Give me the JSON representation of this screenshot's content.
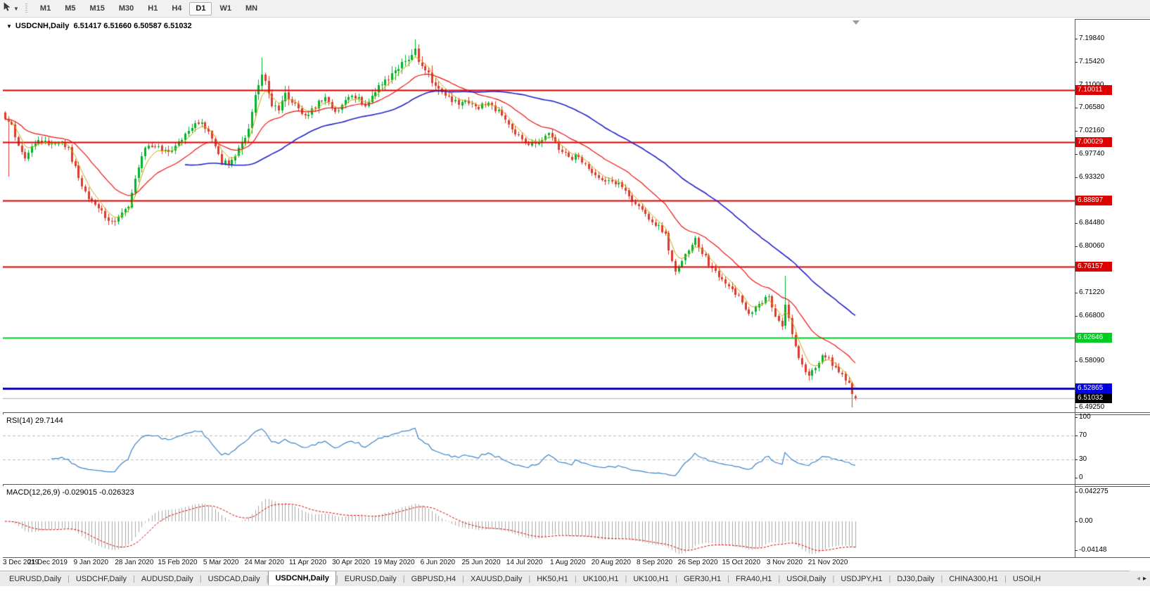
{
  "toolbar": {
    "timeframes": [
      "M1",
      "M5",
      "M15",
      "M30",
      "H1",
      "H4",
      "D1",
      "W1",
      "MN"
    ],
    "active_timeframe": "D1"
  },
  "chart": {
    "title": "USDCNH,Daily",
    "ohlc_text": "6.51417 6.51660 6.50587 6.51032"
  },
  "price_axis": {
    "ticks": [
      "7.19840",
      "7.15420",
      "7.11000",
      "7.06580",
      "7.02160",
      "6.97740",
      "6.93320",
      "6.84480",
      "6.80060",
      "6.71220",
      "6.66800",
      "6.58090",
      "6.49250"
    ]
  },
  "rsi": {
    "label": "RSI(14) 29.7144",
    "ticks": [
      "100",
      "70",
      "30",
      "0"
    ]
  },
  "macd": {
    "label": "MACD(12,26,9) -0.029015 -0.026323",
    "ticks": [
      {
        "text": "0.042275",
        "value": 0.042275
      },
      {
        "text": "0.00",
        "value": 0
      },
      {
        "text": "-0.04148",
        "value": -0.04148
      }
    ]
  },
  "date_axis": {
    "labels": [
      "3 Dec 2019",
      "21 Dec 2019",
      "9 Jan 2020",
      "28 Jan 2020",
      "15 Feb 2020",
      "5 Mar 2020",
      "24 Mar 2020",
      "11 Apr 2020",
      "30 Apr 2020",
      "19 May 2020",
      "6 Jun 2020",
      "25 Jun 2020",
      "14 Jul 2020",
      "1 Aug 2020",
      "20 Aug 2020",
      "8 Sep 2020",
      "26 Sep 2020",
      "15 Oct 2020",
      "3 Nov 2020",
      "21 Nov 2020"
    ],
    "label_day_step": 13
  },
  "tabs": {
    "items": [
      "EURUSD,Daily",
      "USDCHF,Daily",
      "AUDUSD,Daily",
      "USDCAD,Daily",
      "USDCNH,Daily",
      "EURUSD,Daily",
      "GBPUSD,H4",
      "XAUUSD,Daily",
      "HK50,H1",
      "UK100,H1",
      "UK100,H1",
      "GER30,H1",
      "FRA40,H1",
      "USOil,Daily",
      "USDJPY,H1",
      "DJ30,Daily",
      "CHINA300,H1",
      "USOil,H"
    ],
    "active_index": 4,
    "scroll_left": "◂",
    "scroll_right": "▸"
  },
  "chart_data": {
    "type": "candlestick",
    "title": "USDCNH Daily",
    "n_days": 256,
    "y_axis": {
      "top_price": 7.2361,
      "bottom_price": 6.4831
    },
    "x_axis": {
      "first_label": "3 Dec 2019",
      "last_label": "21 Nov 2020"
    },
    "price_anchors": [
      [
        0,
        7.045
      ],
      [
        2,
        7.032
      ],
      [
        4,
        6.998
      ],
      [
        6,
        6.972
      ],
      [
        8,
        6.992
      ],
      [
        10,
        7.006
      ],
      [
        13,
        6.996
      ],
      [
        16,
        7.002
      ],
      [
        19,
        6.986
      ],
      [
        22,
        6.932
      ],
      [
        25,
        6.895
      ],
      [
        28,
        6.876
      ],
      [
        31,
        6.852
      ],
      [
        33,
        6.846
      ],
      [
        35,
        6.862
      ],
      [
        37,
        6.878
      ],
      [
        39,
        6.934
      ],
      [
        41,
        6.976
      ],
      [
        43,
        6.994
      ],
      [
        45,
        6.992
      ],
      [
        47,
        6.986
      ],
      [
        49,
        6.978
      ],
      [
        51,
        6.992
      ],
      [
        53,
        7.004
      ],
      [
        55,
        7.022
      ],
      [
        57,
        7.042
      ],
      [
        59,
        7.034
      ],
      [
        61,
        7.018
      ],
      [
        63,
        6.992
      ],
      [
        65,
        6.958
      ],
      [
        67,
        6.962
      ],
      [
        69,
        6.976
      ],
      [
        71,
        6.998
      ],
      [
        73,
        7.03
      ],
      [
        75,
        7.088
      ],
      [
        77,
        7.13
      ],
      [
        78,
        7.115
      ],
      [
        80,
        7.072
      ],
      [
        82,
        7.062
      ],
      [
        84,
        7.092
      ],
      [
        86,
        7.078
      ],
      [
        88,
        7.062
      ],
      [
        90,
        7.052
      ],
      [
        92,
        7.062
      ],
      [
        94,
        7.076
      ],
      [
        96,
        7.086
      ],
      [
        98,
        7.068
      ],
      [
        100,
        7.058
      ],
      [
        102,
        7.078
      ],
      [
        104,
        7.088
      ],
      [
        106,
        7.082
      ],
      [
        108,
        7.068
      ],
      [
        110,
        7.092
      ],
      [
        112,
        7.108
      ],
      [
        114,
        7.118
      ],
      [
        116,
        7.128
      ],
      [
        118,
        7.142
      ],
      [
        120,
        7.156
      ],
      [
        122,
        7.168
      ],
      [
        123,
        7.178
      ],
      [
        124,
        7.152
      ],
      [
        126,
        7.142
      ],
      [
        128,
        7.118
      ],
      [
        130,
        7.098
      ],
      [
        132,
        7.088
      ],
      [
        134,
        7.082
      ],
      [
        136,
        7.072
      ],
      [
        139,
        7.076
      ],
      [
        142,
        7.068
      ],
      [
        145,
        7.072
      ],
      [
        148,
        7.058
      ],
      [
        151,
        7.032
      ],
      [
        154,
        7.012
      ],
      [
        157,
        6.996
      ],
      [
        160,
        7.002
      ],
      [
        163,
        7.016
      ],
      [
        166,
        6.988
      ],
      [
        169,
        6.968
      ],
      [
        172,
        6.974
      ],
      [
        175,
        6.948
      ],
      [
        178,
        6.936
      ],
      [
        181,
        6.926
      ],
      [
        184,
        6.918
      ],
      [
        187,
        6.898
      ],
      [
        190,
        6.874
      ],
      [
        193,
        6.852
      ],
      [
        196,
        6.84
      ],
      [
        198,
        6.822
      ],
      [
        200,
        6.772
      ],
      [
        201,
        6.756
      ],
      [
        203,
        6.77
      ],
      [
        205,
        6.792
      ],
      [
        207,
        6.814
      ],
      [
        209,
        6.792
      ],
      [
        211,
        6.768
      ],
      [
        213,
        6.752
      ],
      [
        215,
        6.736
      ],
      [
        217,
        6.722
      ],
      [
        219,
        6.712
      ],
      [
        221,
        6.694
      ],
      [
        223,
        6.672
      ],
      [
        225,
        6.682
      ],
      [
        227,
        6.696
      ],
      [
        229,
        6.704
      ],
      [
        231,
        6.668
      ],
      [
        233,
        6.648
      ],
      [
        234,
        6.692
      ],
      [
        235,
        6.66
      ],
      [
        236,
        6.628
      ],
      [
        237,
        6.606
      ],
      [
        239,
        6.578
      ],
      [
        241,
        6.552
      ],
      [
        243,
        6.572
      ],
      [
        245,
        6.592
      ],
      [
        247,
        6.584
      ],
      [
        249,
        6.568
      ],
      [
        251,
        6.552
      ],
      [
        253,
        6.536
      ],
      [
        254,
        6.516
      ],
      [
        255,
        6.51
      ]
    ],
    "spike_highs": [
      [
        77,
        7.162
      ],
      [
        123,
        7.1975
      ],
      [
        234,
        6.744
      ]
    ],
    "spike_lows": [
      [
        1,
        6.935
      ],
      [
        33,
        6.8405
      ],
      [
        201,
        6.7455
      ],
      [
        241,
        6.5435
      ],
      [
        254,
        6.4925
      ]
    ],
    "last_candle": {
      "open": 6.51417,
      "high": 6.5166,
      "low": 6.50587,
      "close": 6.51032
    },
    "levels": [
      {
        "label": "7.10011",
        "value": 7.10011,
        "color": "#dd0000",
        "width": 2
      },
      {
        "label": "7.00029",
        "value": 7.00029,
        "color": "#dd0000",
        "width": 2
      },
      {
        "label": "6.88897",
        "value": 6.88897,
        "color": "#dd0000",
        "width": 2
      },
      {
        "label": "6.76157",
        "value": 6.76157,
        "color": "#dd0000",
        "width": 2
      },
      {
        "label": "6.62646",
        "value": 6.62646,
        "color": "#00cc22",
        "width": 2
      },
      {
        "label": "6.52865",
        "value": 6.52865,
        "color": "#0000dd",
        "width": 3
      },
      {
        "label": "6.51032",
        "value": 6.51032,
        "color": "#000000",
        "width": 1,
        "line_color": "#b0b0b0",
        "current": true
      }
    ],
    "moving_averages": [
      {
        "type": "ema",
        "period": 5,
        "color": "#c9a40a",
        "width": 1
      },
      {
        "type": "ema",
        "period": 21,
        "color": "#ee1111",
        "width": 1.2
      },
      {
        "type": "sma",
        "period": 55,
        "color": "#2222cc",
        "width": 1.6
      }
    ],
    "indicators": [
      {
        "name": "RSI",
        "period": 14,
        "value": 29.7144,
        "color": "#3c82c8",
        "levels": [
          70,
          30
        ]
      },
      {
        "name": "MACD",
        "fast": 12,
        "slow": 26,
        "signal": 9,
        "value": -0.029015,
        "signal_value": -0.026323,
        "bar_color": "#a8a8a8",
        "signal_color": "#dd0000"
      }
    ],
    "candle_colors": {
      "bull": "#00b32c",
      "bear": "#dc3a2c"
    }
  }
}
